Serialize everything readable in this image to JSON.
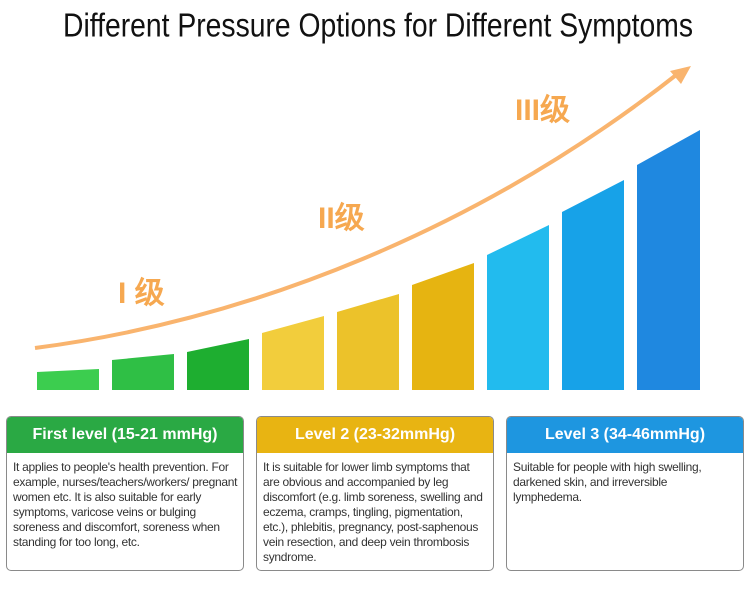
{
  "title": "Different Pressure Options for Different Symptoms",
  "level_marks": [
    "I 级",
    "II级",
    "III级"
  ],
  "cards": [
    {
      "title": "First level (15-21 mmHg)",
      "text": "It applies to people's health prevention. For example, nurses/teachers/workers/ pregnant women etc. It is also suitable for early symptoms, varicose veins or bulging soreness and discomfort, soreness when standing for too long, etc."
    },
    {
      "title": "Level 2 (23-32mmHg)",
      "text": "It is suitable for lower limb symptoms that are obvious and accompanied by leg discomfort (e.g. limb soreness, swelling and eczema, cramps, tingling, pigmentation, etc.), phlebitis, pregnancy, post-saphenous vein resection, and deep vein thrombosis syndrome."
    },
    {
      "title": "Level 3 (34-46mmHg)",
      "text": "Suitable for people with high swelling, darkened skin, and irreversible lymphedema."
    }
  ]
}
